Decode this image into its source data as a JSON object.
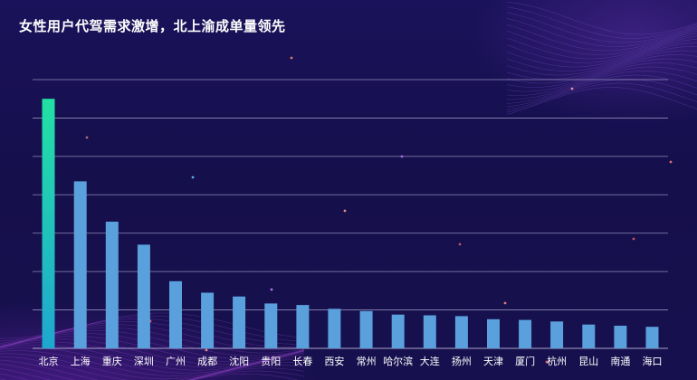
{
  "chart_data": {
    "type": "bar",
    "title": "女性用户代驾需求激增，北上渝成单量领先",
    "xlabel": "",
    "ylabel": "",
    "categories": [
      "北京",
      "上海",
      "重庆",
      "深圳",
      "广州",
      "成都",
      "沈阳",
      "贵阳",
      "长春",
      "西安",
      "常州",
      "哈尔滨",
      "大连",
      "扬州",
      "天津",
      "厦门",
      "杭州",
      "昆山",
      "南通",
      "海口"
    ],
    "values": [
      6.5,
      4.35,
      3.3,
      2.7,
      1.75,
      1.45,
      1.35,
      1.17,
      1.13,
      1.03,
      0.97,
      0.88,
      0.86,
      0.84,
      0.76,
      0.74,
      0.7,
      0.62,
      0.59,
      0.56
    ],
    "highlight_index": 0,
    "ylim": [
      0,
      7
    ],
    "grid": true,
    "colors": {
      "highlight_top": "#22e0a4",
      "highlight_bottom": "#1fa7cf",
      "bar": "#5aa0dc",
      "grid": "#b8b4d8"
    }
  }
}
